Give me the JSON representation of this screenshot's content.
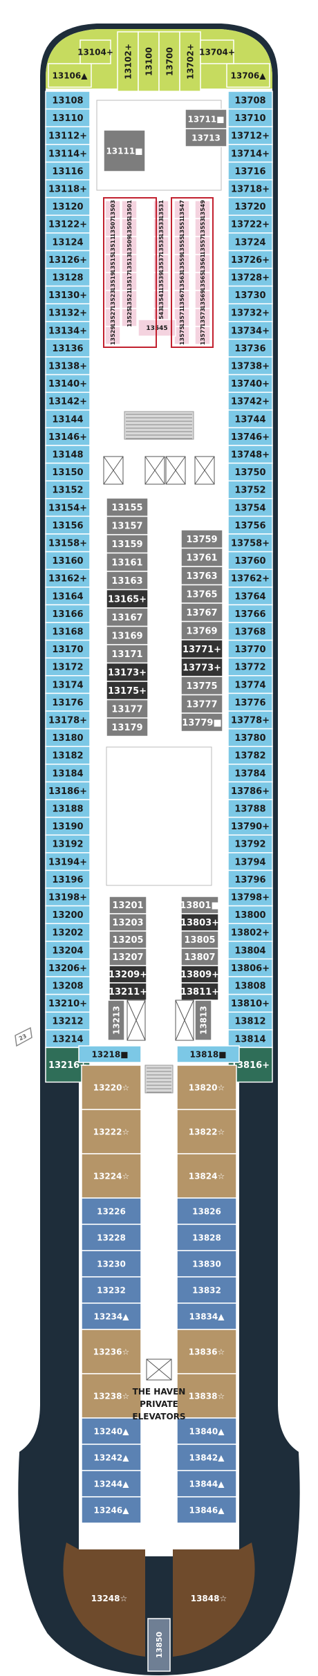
{
  "colors": {
    "blue": "#7cc8e6",
    "green": "#c6db5f",
    "teal": "#2f6e58",
    "gray": "#7d7d7d",
    "darkgray": "#5a5a5a",
    "black": "#333333",
    "pink": "#f4d3df",
    "tan": "#b59568",
    "navy": "#5b82b3",
    "brown": "#6f4b2c",
    "slate": "#6f7f94",
    "hull": "#1e2d3a",
    "stair": "#d9d9d9"
  },
  "fwd": {
    "left_corner": "13106▲",
    "right_corner": "13706▲",
    "top": [
      "13104+",
      "13102+",
      "13100",
      "13700",
      "13702+",
      "13704+"
    ]
  },
  "port_cabins": [
    "13108",
    "13110",
    "13112+",
    "13114+",
    "13116",
    "13118+",
    "13120",
    "13122+",
    "13124",
    "13126+",
    "13128",
    "13130+",
    "13132+",
    "13134+",
    "13136",
    "13138+",
    "13140+",
    "13142+",
    "13144",
    "13146+",
    "13148",
    "13150",
    "13152",
    "13154+",
    "13156",
    "13158+",
    "13160",
    "13162+",
    "13164",
    "13166",
    "13168",
    "13170",
    "13172",
    "13174",
    "13176",
    "13178+",
    "13180",
    "13182",
    "13184",
    "13186+",
    "13188",
    "13190",
    "13192",
    "13194+",
    "13196",
    "13198+",
    "13200",
    "13202",
    "13204",
    "13206+",
    "13208",
    "13210+",
    "13212",
    "13214"
  ],
  "port_end": "13216+",
  "stbd_cabins": [
    "13708",
    "13710",
    "13712+",
    "13714+",
    "13716",
    "13718+",
    "13720",
    "13722+",
    "13724",
    "13726+",
    "13728+",
    "13730",
    "13732+",
    "13734+",
    "13736",
    "13738+",
    "13740+",
    "13742+",
    "13744",
    "13746+",
    "13748+",
    "13750",
    "13752",
    "13754",
    "13756",
    "13758+",
    "13760",
    "13762+",
    "13764",
    "13766",
    "13768",
    "13770",
    "13772",
    "13774",
    "13776",
    "13778+",
    "13780",
    "13782",
    "13784",
    "13786+",
    "13788",
    "13790+",
    "13792",
    "13794",
    "13796",
    "13798+",
    "13800",
    "13802+",
    "13804",
    "13806+",
    "13808",
    "13810+",
    "13812",
    "13814"
  ],
  "stbd_end": "13816+",
  "inner_top": {
    "c13111": "13111■",
    "c13711": "13711■",
    "c13713": "13713"
  },
  "studios": [
    "13503",
    "13507",
    "13511",
    "13515",
    "13519",
    "13523",
    "13527",
    "13529",
    "13501",
    "13505",
    "13509",
    "13513",
    "13517",
    "13521",
    "13525",
    "13531",
    "13533",
    "13535",
    "13537",
    "13539",
    "13541",
    "13543",
    "13545",
    "13547",
    "13551",
    "13555",
    "13559",
    "13563",
    "13567",
    "13571",
    "13575",
    "13549",
    "13553",
    "13557",
    "13561",
    "13565",
    "13569",
    "13573",
    "13577"
  ],
  "inner_left": [
    "13155",
    "13157",
    "13159",
    "13161",
    "13163",
    "13165+",
    "13167",
    "13169",
    "13171",
    "13173+",
    "13175+",
    "13177",
    "13179"
  ],
  "inner_right": [
    "13759",
    "13761",
    "13763",
    "13765",
    "13767",
    "13769",
    "13771+",
    "13773+",
    "13775",
    "13777",
    "13779■"
  ],
  "inner_left_lower": [
    "13201",
    "13203",
    "13205",
    "13207",
    "13209+",
    "13211+"
  ],
  "inner_right_lower": [
    "13801■",
    "13803+",
    "13805",
    "13807",
    "13809+",
    "13811+"
  ],
  "inner_vertical": {
    "left": "13213",
    "right": "13813"
  },
  "aft_top": {
    "left": "13218■",
    "right": "13818■"
  },
  "haven_left": [
    "13220☆",
    "13222☆",
    "13224☆",
    "13226",
    "13228",
    "13230",
    "13232",
    "13234▲",
    "13236☆",
    "13238☆",
    "13240▲",
    "13242▲",
    "13244▲",
    "13246▲"
  ],
  "haven_right": [
    "13820☆",
    "13822☆",
    "13824☆",
    "13826",
    "13828",
    "13830",
    "13832",
    "13834▲",
    "13836☆",
    "13838☆",
    "13840▲",
    "13842▲",
    "13844▲",
    "13846▲"
  ],
  "haven_label": [
    "THE HAVEN",
    "PRIVATE",
    "ELEVATORS"
  ],
  "stern": {
    "left": "13248☆",
    "right": "13848☆",
    "center": "13850"
  },
  "sign_23": "23"
}
